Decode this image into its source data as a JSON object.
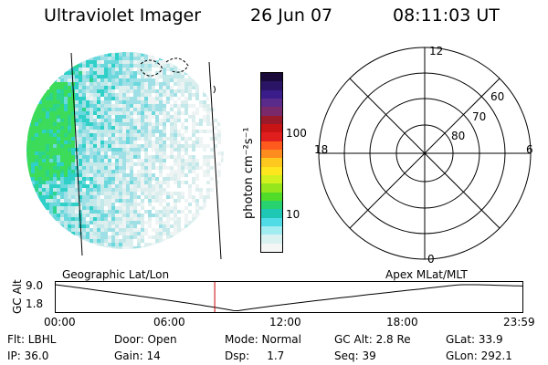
{
  "header": {
    "title": "Ultraviolet Imager",
    "date": "26 Jun 07",
    "time": "08:11:03 UT"
  },
  "colorbar": {
    "unit_label": "photon cm⁻²s⁻¹",
    "ticks": [
      "100",
      "10"
    ],
    "colors": [
      "#1a0a3a",
      "#2a1466",
      "#3a1d8a",
      "#5a2b8a",
      "#7a2a6a",
      "#9a1a2a",
      "#c81414",
      "#e01e1e",
      "#ff5a1e",
      "#ff8c1e",
      "#ffc81e",
      "#ffe61e",
      "#d2f01e",
      "#96e61e",
      "#50dc28",
      "#28d26e",
      "#1ec8b4",
      "#50dce6",
      "#a0ecf0",
      "#d8f2f2",
      "#f4f6f6"
    ]
  },
  "polar": {
    "labels": {
      "top": "12",
      "left": "18",
      "right": "6",
      "bottom": "0",
      "r60": "60",
      "r70": "70",
      "r80": "80"
    }
  },
  "timeline": {
    "left_caption": "Geographic Lat/Lon",
    "right_caption": "Apex MLat/MLT",
    "axis_label": "GC Alt",
    "y_ticks": [
      "9.0",
      "1.8"
    ],
    "x_ticks": [
      "00:00",
      "06:00",
      "12:00",
      "18:00",
      "23:59"
    ],
    "current_fraction": 0.34,
    "marker_color": "#cc0000"
  },
  "footer": {
    "flt": "Flt: LBHL",
    "door": "Door: Open",
    "mode": "Mode: Normal",
    "gc_alt": "GC Alt: 2.8 Re",
    "glat": "GLat: 33.9",
    "ip": "IP: 36.0",
    "gain": "Gain: 14",
    "dsp": "Dsp:     1.7",
    "seq": "Seq: 39",
    "glon": "GLon: 292.1"
  }
}
